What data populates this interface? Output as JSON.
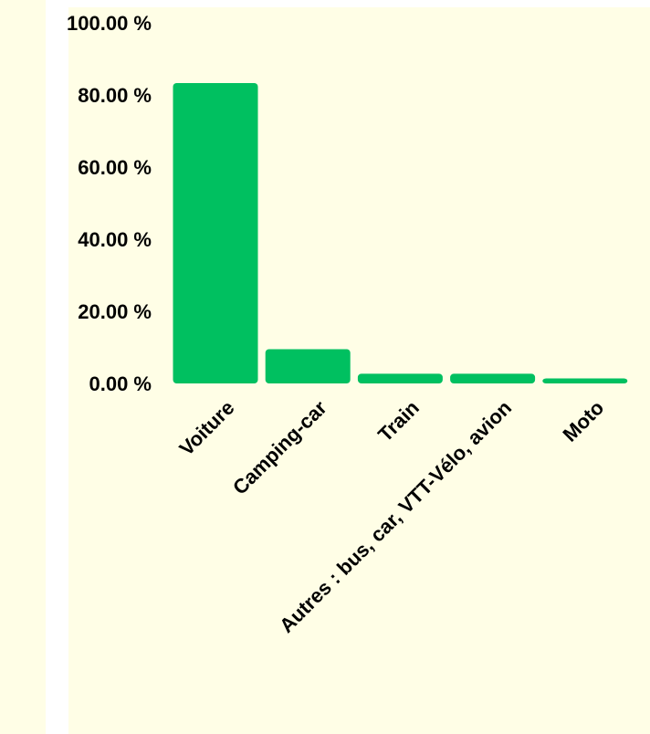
{
  "chart_data": {
    "type": "bar",
    "categories": [
      "Voiture",
      "Camping-car",
      "Train",
      "Autres : bus, car, VTT-Vélo, avion",
      "Moto"
    ],
    "values": [
      83.3,
      9.5,
      2.7,
      2.7,
      1.4
    ],
    "title": "",
    "xlabel": "",
    "ylabel": "",
    "ylim": [
      0,
      100
    ],
    "yticks": [
      "0.00 %",
      "20.00 %",
      "40.00 %",
      "60.00 %",
      "80.00 %",
      "100.00 %"
    ],
    "grid": false,
    "legend": "none",
    "bar_color": "#00c060",
    "background_color": "#fffee6"
  }
}
